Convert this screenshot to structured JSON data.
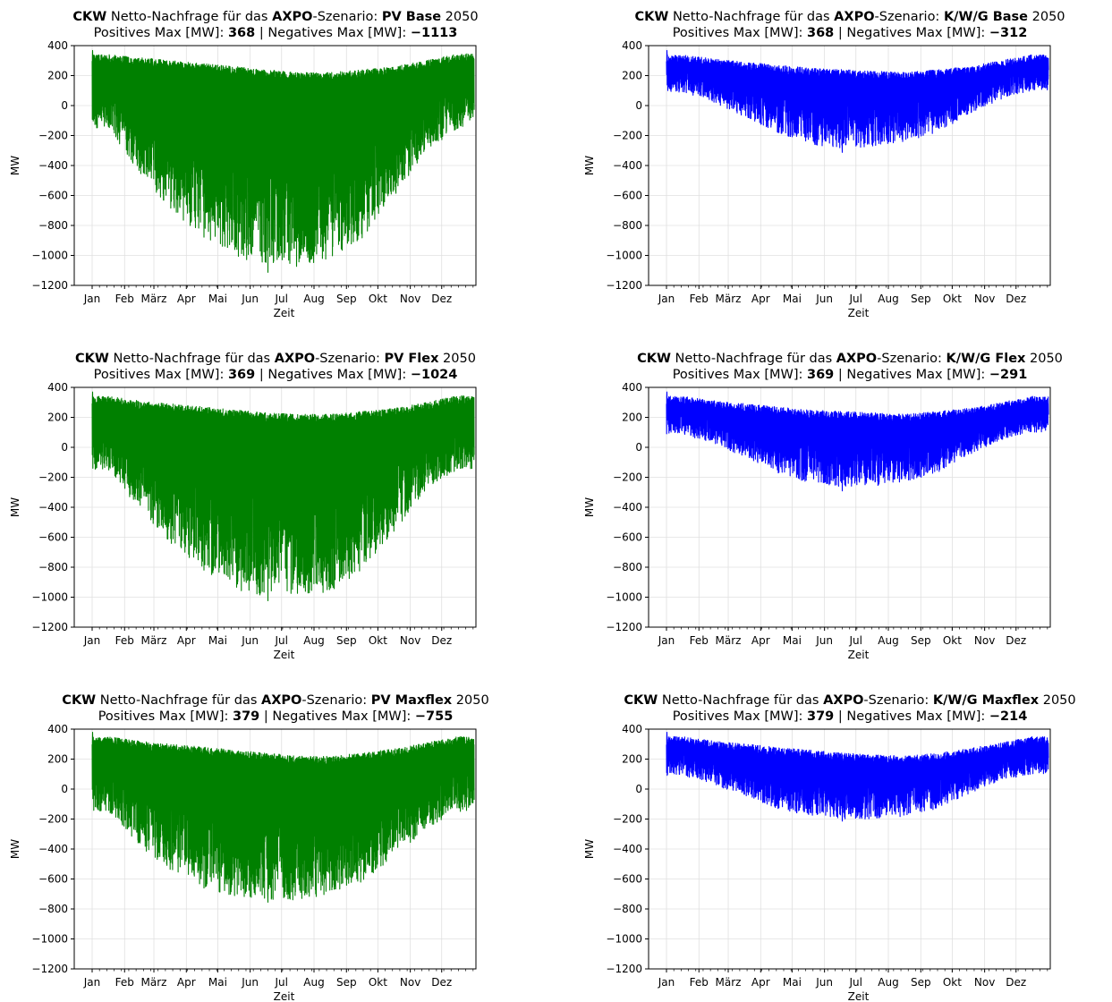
{
  "figure": {
    "charts_prefix": {
      "company": "CKW",
      "mid": " Netto-Nachfrage für das ",
      "operator": "AXPO",
      "after_operator": "-Szenario: "
    },
    "subtitle_parts": {
      "pos": "Positives Max [MW]: ",
      "sep": " | Negatives Max [MW]: "
    }
  },
  "chart_data": [
    {
      "type": "line",
      "title": "CKW Netto-Nachfrage für das AXPO-Szenario: PV Base 2050",
      "scenario": "PV Base",
      "year": "2050",
      "subtitle": "Positives Max [MW]: 368 | Negatives Max [MW]: −1113",
      "pos_max": "368",
      "neg_max": "−1113",
      "xlabel": "Zeit",
      "ylabel": "MW",
      "x_ticks": [
        "Jan",
        "Feb",
        "März",
        "Apr",
        "Mai",
        "Jun",
        "Jul",
        "Aug",
        "Sep",
        "Okt",
        "Nov",
        "Dez"
      ],
      "ylim": [
        -1200,
        400
      ],
      "y_ticks": [
        400,
        200,
        0,
        -200,
        -400,
        -600,
        -800,
        -1000,
        -1200
      ],
      "color": "#008000",
      "series": [
        {
          "values_upper_monthly": [
            340,
            320,
            300,
            280,
            260,
            240,
            220,
            220,
            240,
            260,
            300,
            345
          ],
          "values_lower_monthly": [
            -150,
            -450,
            -700,
            -880,
            -1000,
            -1080,
            -1080,
            -1020,
            -900,
            -600,
            -300,
            -150
          ],
          "max": 368,
          "min": -1113
        }
      ],
      "grid": true
    },
    {
      "type": "line",
      "title": "CKW Netto-Nachfrage für das AXPO-Szenario: K/W/G Base 2050",
      "scenario": "K/W/G Base",
      "year": "2050",
      "subtitle": "Positives Max [MW]: 368 | Negatives Max [MW]: −312",
      "pos_max": "368",
      "neg_max": "−312",
      "xlabel": "Zeit",
      "ylabel": "MW",
      "x_ticks": [
        "Jan",
        "Feb",
        "März",
        "Apr",
        "Mai",
        "Jun",
        "Jul",
        "Aug",
        "Sep",
        "Okt",
        "Nov",
        "Dez"
      ],
      "ylim": [
        -1200,
        400
      ],
      "y_ticks": [
        400,
        200,
        0,
        -200,
        -400,
        -600,
        -800,
        -1000,
        -1200
      ],
      "color": "#0000ff",
      "series": [
        {
          "values_upper_monthly": [
            340,
            310,
            290,
            270,
            250,
            240,
            230,
            220,
            240,
            260,
            300,
            340
          ],
          "values_lower_monthly": [
            90,
            20,
            -80,
            -180,
            -260,
            -290,
            -270,
            -240,
            -180,
            -60,
            40,
            100
          ],
          "max": 368,
          "min": -312
        }
      ],
      "grid": true
    },
    {
      "type": "line",
      "title": "CKW Netto-Nachfrage für das AXPO-Szenario: PV Flex 2050",
      "scenario": "PV Flex",
      "year": "2050",
      "subtitle": "Positives Max [MW]: 369 | Negatives Max [MW]: −1024",
      "pos_max": "369",
      "neg_max": "−1024",
      "xlabel": "Zeit",
      "ylabel": "MW",
      "x_ticks": [
        "Jan",
        "Feb",
        "März",
        "Apr",
        "Mai",
        "Jun",
        "Jul",
        "Aug",
        "Sep",
        "Okt",
        "Nov",
        "Dez"
      ],
      "ylim": [
        -1200,
        400
      ],
      "y_ticks": [
        400,
        200,
        0,
        -200,
        -400,
        -600,
        -800,
        -1000,
        -1200
      ],
      "color": "#008000",
      "series": [
        {
          "values_upper_monthly": [
            340,
            310,
            290,
            270,
            250,
            230,
            220,
            220,
            240,
            260,
            300,
            345
          ],
          "values_lower_monthly": [
            -150,
            -420,
            -650,
            -820,
            -950,
            -1000,
            -1000,
            -960,
            -820,
            -560,
            -280,
            -150
          ],
          "max": 369,
          "min": -1024
        }
      ],
      "grid": true
    },
    {
      "type": "line",
      "title": "CKW Netto-Nachfrage für das AXPO-Szenario: K/W/G Flex 2050",
      "scenario": "K/W/G Flex",
      "year": "2050",
      "subtitle": "Positives Max [MW]: 369 | Negatives Max [MW]: −291",
      "pos_max": "369",
      "neg_max": "−291",
      "xlabel": "Zeit",
      "ylabel": "MW",
      "x_ticks": [
        "Jan",
        "Feb",
        "März",
        "Apr",
        "Mai",
        "Jun",
        "Jul",
        "Aug",
        "Sep",
        "Okt",
        "Nov",
        "Dez"
      ],
      "ylim": [
        -1200,
        400
      ],
      "y_ticks": [
        400,
        200,
        0,
        -200,
        -400,
        -600,
        -800,
        -1000,
        -1200
      ],
      "color": "#0000ff",
      "series": [
        {
          "values_upper_monthly": [
            340,
            310,
            290,
            270,
            250,
            240,
            230,
            220,
            240,
            260,
            300,
            340
          ],
          "values_lower_monthly": [
            90,
            20,
            -70,
            -170,
            -240,
            -270,
            -260,
            -230,
            -170,
            -50,
            50,
            100
          ],
          "max": 369,
          "min": -291
        }
      ],
      "grid": true
    },
    {
      "type": "line",
      "title": "CKW Netto-Nachfrage für das AXPO-Szenario: PV Maxflex 2050",
      "scenario": "PV Maxflex",
      "year": "2050",
      "subtitle": "Positives Max [MW]: 379 | Negatives Max [MW]: −755",
      "pos_max": "379",
      "neg_max": "−755",
      "xlabel": "Zeit",
      "ylabel": "MW",
      "x_ticks": [
        "Jan",
        "Feb",
        "März",
        "Apr",
        "Mai",
        "Jun",
        "Jul",
        "Aug",
        "Sep",
        "Okt",
        "Nov",
        "Dez"
      ],
      "ylim": [
        -1200,
        400
      ],
      "y_ticks": [
        400,
        200,
        0,
        -200,
        -400,
        -600,
        -800,
        -1000,
        -1200
      ],
      "color": "#008000",
      "series": [
        {
          "values_upper_monthly": [
            350,
            320,
            300,
            280,
            260,
            240,
            220,
            220,
            240,
            270,
            310,
            350
          ],
          "values_lower_monthly": [
            -150,
            -380,
            -550,
            -660,
            -720,
            -740,
            -740,
            -700,
            -620,
            -460,
            -260,
            -150
          ],
          "max": 379,
          "min": -755
        }
      ],
      "grid": true
    },
    {
      "type": "line",
      "title": "CKW Netto-Nachfrage für das AXPO-Szenario: K/W/G Maxflex 2050",
      "scenario": "K/W/G Maxflex",
      "year": "2050",
      "subtitle": "Positives Max [MW]: 379 | Negatives Max [MW]: −214",
      "pos_max": "379",
      "neg_max": "−214",
      "xlabel": "Zeit",
      "ylabel": "MW",
      "x_ticks": [
        "Jan",
        "Feb",
        "März",
        "Apr",
        "Mai",
        "Jun",
        "Jul",
        "Aug",
        "Sep",
        "Okt",
        "Nov",
        "Dez"
      ],
      "ylim": [
        -1200,
        400
      ],
      "y_ticks": [
        400,
        200,
        0,
        -200,
        -400,
        -600,
        -800,
        -1000,
        -1200
      ],
      "color": "#0000ff",
      "series": [
        {
          "values_upper_monthly": [
            350,
            320,
            300,
            280,
            260,
            240,
            230,
            220,
            240,
            270,
            310,
            350
          ],
          "values_lower_monthly": [
            90,
            30,
            -50,
            -130,
            -180,
            -200,
            -200,
            -180,
            -130,
            -30,
            60,
            100
          ],
          "max": 379,
          "min": -214
        }
      ],
      "grid": true
    }
  ]
}
